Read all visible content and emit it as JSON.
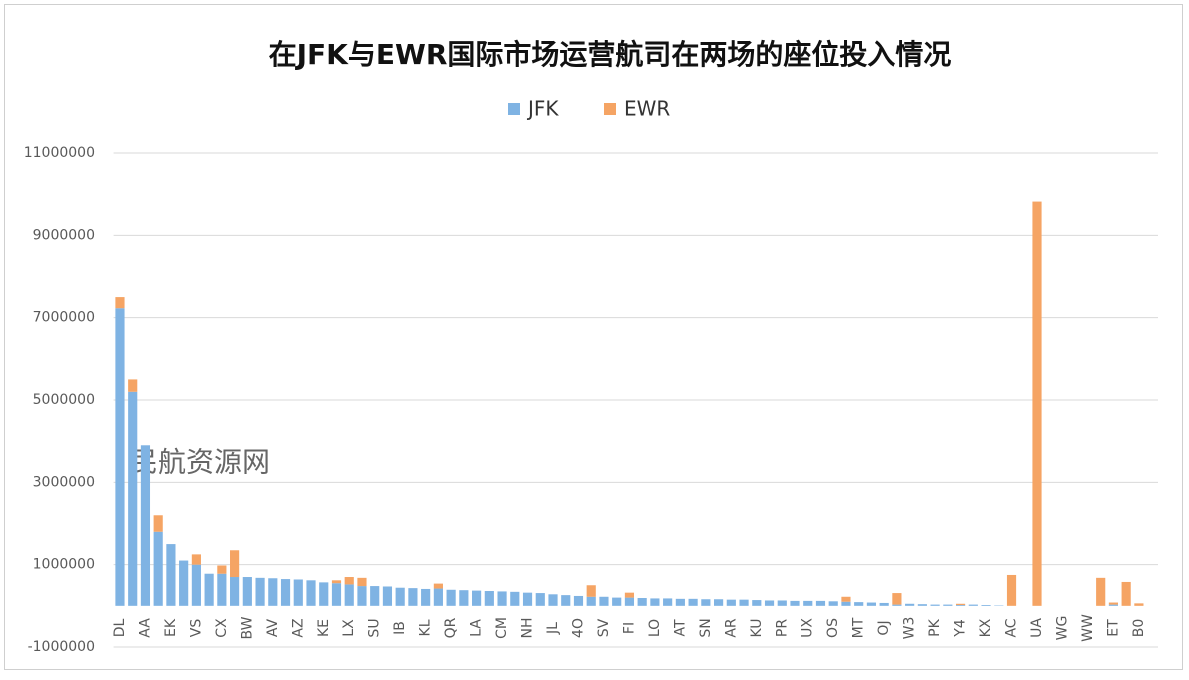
{
  "chart_data": {
    "type": "bar",
    "stacked": true,
    "title": "在JFK与EWR国际市场运营航司在两场的座位投入情况",
    "watermark": "民航资源网",
    "categories": [
      "DL",
      null,
      "AA",
      null,
      "EK",
      null,
      "VS",
      null,
      "CX",
      null,
      "BW",
      null,
      "AV",
      null,
      "AZ",
      null,
      "KE",
      null,
      "LX",
      null,
      "SU",
      null,
      "IB",
      null,
      "KL",
      null,
      "QR",
      null,
      "LA",
      null,
      "CM",
      null,
      "NH",
      null,
      "JL",
      null,
      "4O",
      null,
      "SV",
      null,
      "FI",
      null,
      "LO",
      null,
      "AT",
      null,
      "SN",
      null,
      "AR",
      null,
      "KU",
      null,
      "PR",
      null,
      "UX",
      null,
      "OS",
      null,
      "MT",
      null,
      "OJ",
      null,
      "W3",
      null,
      "PK",
      null,
      "Y4",
      null,
      "KX",
      null,
      "AC",
      null,
      "UA",
      null,
      "WG",
      null,
      "WW",
      null,
      "ET",
      null,
      "B0",
      null
    ],
    "series": [
      {
        "name": "JFK",
        "color": "#7fb3e3",
        "values": [
          7230000,
          5200000,
          3900000,
          1800000,
          1500000,
          1100000,
          1000000,
          780000,
          780000,
          700000,
          700000,
          680000,
          670000,
          650000,
          640000,
          620000,
          570000,
          550000,
          520000,
          480000,
          480000,
          470000,
          440000,
          430000,
          410000,
          420000,
          390000,
          380000,
          370000,
          360000,
          350000,
          340000,
          320000,
          310000,
          280000,
          260000,
          240000,
          220000,
          220000,
          200000,
          200000,
          190000,
          180000,
          180000,
          170000,
          170000,
          160000,
          160000,
          150000,
          150000,
          140000,
          130000,
          130000,
          120000,
          120000,
          120000,
          110000,
          100000,
          90000,
          80000,
          70000,
          30000,
          50000,
          40000,
          30000,
          30000,
          20000,
          30000,
          20000,
          10000,
          0,
          0,
          0,
          0,
          0,
          0,
          0,
          0,
          30000,
          0,
          0,
          0
        ]
      },
      {
        "name": "EWR",
        "color": "#f5a464",
        "values": [
          270000,
          300000,
          0,
          400000,
          0,
          0,
          250000,
          0,
          200000,
          650000,
          0,
          0,
          0,
          0,
          0,
          0,
          0,
          70000,
          180000,
          200000,
          0,
          0,
          0,
          0,
          0,
          120000,
          0,
          0,
          0,
          0,
          0,
          0,
          0,
          0,
          0,
          0,
          0,
          280000,
          0,
          0,
          120000,
          0,
          0,
          0,
          0,
          0,
          0,
          0,
          0,
          0,
          0,
          0,
          0,
          0,
          0,
          0,
          0,
          120000,
          0,
          0,
          0,
          280000,
          0,
          0,
          0,
          0,
          30000,
          0,
          0,
          0,
          750000,
          0,
          9820000,
          0,
          0,
          0,
          0,
          680000,
          50000,
          580000,
          60000,
          0
        ]
      }
    ],
    "ylim": [
      -1000000,
      11000000
    ],
    "yticks": [
      -1000000,
      1000000,
      3000000,
      5000000,
      7000000,
      9000000,
      11000000
    ],
    "grid": true,
    "legend": "top"
  }
}
